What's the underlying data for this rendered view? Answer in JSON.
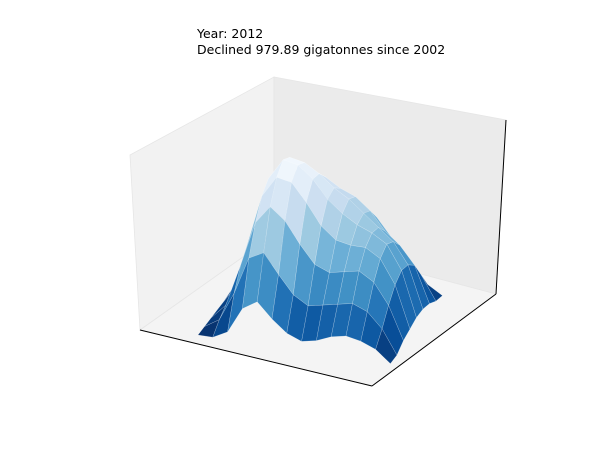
{
  "chart_data": {
    "type": "surface3d",
    "title": "Year: 2012",
    "subtitle": "Declined 979.89 gigatonnes since 2002",
    "colormap": "Blues",
    "grid": false,
    "surface": {
      "description_rows": "heightmap of ice sheet elevation (relative units, 0-1), rows front-to-back, cols left-to-right",
      "z": [
        [
          0.0,
          0.0,
          0.05,
          0.22,
          0.28,
          0.18,
          0.1,
          0.06,
          0.08,
          0.12,
          0.14,
          0.12,
          0.08,
          0.0
        ],
        [
          0.0,
          0.06,
          0.25,
          0.5,
          0.55,
          0.42,
          0.3,
          0.24,
          0.26,
          0.28,
          0.3,
          0.26,
          0.16,
          0.0
        ],
        [
          0.0,
          0.1,
          0.38,
          0.68,
          0.8,
          0.72,
          0.58,
          0.46,
          0.42,
          0.44,
          0.46,
          0.4,
          0.26,
          0.04
        ],
        [
          0.0,
          0.14,
          0.46,
          0.8,
          0.94,
          0.92,
          0.8,
          0.66,
          0.58,
          0.56,
          0.56,
          0.5,
          0.34,
          0.06
        ],
        [
          0.0,
          0.16,
          0.5,
          0.86,
          1.0,
          0.98,
          0.9,
          0.78,
          0.7,
          0.64,
          0.6,
          0.54,
          0.38,
          0.08
        ],
        [
          0.0,
          0.14,
          0.46,
          0.82,
          0.96,
          0.94,
          0.88,
          0.8,
          0.74,
          0.66,
          0.58,
          0.5,
          0.36,
          0.08
        ],
        [
          0.0,
          0.1,
          0.36,
          0.68,
          0.82,
          0.84,
          0.8,
          0.74,
          0.7,
          0.62,
          0.5,
          0.42,
          0.3,
          0.06
        ],
        [
          0.0,
          0.04,
          0.22,
          0.46,
          0.6,
          0.66,
          0.66,
          0.62,
          0.58,
          0.52,
          0.4,
          0.3,
          0.18,
          0.02
        ],
        [
          0.0,
          0.0,
          0.08,
          0.22,
          0.34,
          0.4,
          0.44,
          0.42,
          0.4,
          0.36,
          0.26,
          0.16,
          0.06,
          0.0
        ]
      ]
    }
  }
}
